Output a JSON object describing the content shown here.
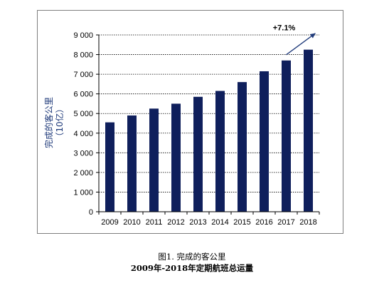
{
  "chart_data": {
    "type": "bar",
    "categories": [
      "2009",
      "2010",
      "2011",
      "2012",
      "2013",
      "2014",
      "2015",
      "2016",
      "2017",
      "2018"
    ],
    "values": [
      4550,
      4900,
      5250,
      5500,
      5850,
      6150,
      6600,
      7150,
      7700,
      8250
    ],
    "ylabel": "完成的客公里",
    "ylabel_unit": "（10亿）",
    "yticks": [
      "0",
      "1 000",
      "2 000",
      "3 000",
      "4 000",
      "5 000",
      "6 000",
      "7 000",
      "8 000",
      "9 000"
    ],
    "ylim": [
      0,
      9000
    ],
    "grid": true,
    "annotation": "+7.1%",
    "colors": {
      "bar": "#0f1f5c",
      "grid": "#000000",
      "arrow": "#1f3a7a"
    }
  },
  "caption": {
    "line1": "图1. 完成的客公里",
    "line2": "2009年-2018年定期航班总运量"
  }
}
